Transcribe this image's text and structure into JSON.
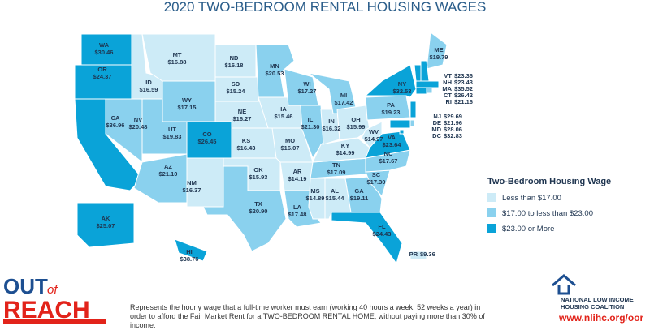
{
  "title": "2020 TWO-BEDROOM RENTAL HOUSING WAGES",
  "map": {
    "states": [
      {
        "abbr": "WA",
        "label": "$30.46",
        "value": 30.46,
        "color": "#0aa3d8"
      },
      {
        "abbr": "OR",
        "label": "$24.37",
        "value": 24.37,
        "color": "#0aa3d8"
      },
      {
        "abbr": "CA",
        "label": "$36.96",
        "value": 36.96,
        "color": "#0aa3d8"
      },
      {
        "abbr": "NV",
        "label": "$20.48",
        "value": 20.48,
        "color": "#8ad1ee"
      },
      {
        "abbr": "ID",
        "label": "$16.59",
        "value": 16.59,
        "color": "#cdebf7"
      },
      {
        "abbr": "MT",
        "label": "$16.88",
        "value": 16.88,
        "color": "#cdebf7"
      },
      {
        "abbr": "WY",
        "label": "$17.15",
        "value": 17.15,
        "color": "#8ad1ee"
      },
      {
        "abbr": "UT",
        "label": "$19.83",
        "value": 19.83,
        "color": "#8ad1ee"
      },
      {
        "abbr": "CO",
        "label": "$26.45",
        "value": 26.45,
        "color": "#0aa3d8"
      },
      {
        "abbr": "AZ",
        "label": "$21.10",
        "value": 21.1,
        "color": "#8ad1ee"
      },
      {
        "abbr": "NM",
        "label": "$16.37",
        "value": 16.37,
        "color": "#cdebf7"
      },
      {
        "abbr": "ND",
        "label": "$16.18",
        "value": 16.18,
        "color": "#cdebf7"
      },
      {
        "abbr": "SD",
        "label": "$15.24",
        "value": 15.24,
        "color": "#cdebf7"
      },
      {
        "abbr": "NE",
        "label": "$16.27",
        "value": 16.27,
        "color": "#cdebf7"
      },
      {
        "abbr": "KS",
        "label": "$16.43",
        "value": 16.43,
        "color": "#cdebf7"
      },
      {
        "abbr": "OK",
        "label": "$15.93",
        "value": 15.93,
        "color": "#cdebf7"
      },
      {
        "abbr": "TX",
        "label": "$20.90",
        "value": 20.9,
        "color": "#8ad1ee"
      },
      {
        "abbr": "MN",
        "label": "$20.53",
        "value": 20.53,
        "color": "#8ad1ee"
      },
      {
        "abbr": "IA",
        "label": "$15.46",
        "value": 15.46,
        "color": "#cdebf7"
      },
      {
        "abbr": "MO",
        "label": "$16.07",
        "value": 16.07,
        "color": "#cdebf7"
      },
      {
        "abbr": "AR",
        "label": "$14.19",
        "value": 14.19,
        "color": "#cdebf7"
      },
      {
        "abbr": "LA",
        "label": "$17.48",
        "value": 17.48,
        "color": "#8ad1ee"
      },
      {
        "abbr": "WI",
        "label": "$17.27",
        "value": 17.27,
        "color": "#8ad1ee"
      },
      {
        "abbr": "IL",
        "label": "$21.30",
        "value": 21.3,
        "color": "#8ad1ee"
      },
      {
        "abbr": "MS",
        "label": "$14.89",
        "value": 14.89,
        "color": "#cdebf7"
      },
      {
        "abbr": "AL",
        "label": "$15.44",
        "value": 15.44,
        "color": "#cdebf7"
      },
      {
        "abbr": "TN",
        "label": "$17.09",
        "value": 17.09,
        "color": "#8ad1ee"
      },
      {
        "abbr": "KY",
        "label": "$14.99",
        "value": 14.99,
        "color": "#cdebf7"
      },
      {
        "abbr": "IN",
        "label": "$16.32",
        "value": 16.32,
        "color": "#cdebf7"
      },
      {
        "abbr": "MI",
        "label": "$17.42",
        "value": 17.42,
        "color": "#8ad1ee"
      },
      {
        "abbr": "OH",
        "label": "$15.99",
        "value": 15.99,
        "color": "#cdebf7"
      },
      {
        "abbr": "GA",
        "label": "$19.11",
        "value": 19.11,
        "color": "#8ad1ee"
      },
      {
        "abbr": "FL",
        "label": "$24.43",
        "value": 24.43,
        "color": "#0aa3d8"
      },
      {
        "abbr": "SC",
        "label": "$17.30",
        "value": 17.3,
        "color": "#8ad1ee"
      },
      {
        "abbr": "NC",
        "label": "$17.67",
        "value": 17.67,
        "color": "#8ad1ee"
      },
      {
        "abbr": "VA",
        "label": "$23.64",
        "value": 23.64,
        "color": "#0aa3d8"
      },
      {
        "abbr": "WV",
        "label": "$14.97",
        "value": 14.97,
        "color": "#cdebf7"
      },
      {
        "abbr": "PA",
        "label": "$19.23",
        "value": 19.23,
        "color": "#8ad1ee"
      },
      {
        "abbr": "NY",
        "label": "$32.53",
        "value": 32.53,
        "color": "#0aa3d8"
      },
      {
        "abbr": "ME",
        "label": "$19.79",
        "value": 19.79,
        "color": "#8ad1ee"
      },
      {
        "abbr": "VT",
        "label": "$23.36",
        "value": 23.36,
        "color": "#0aa3d8"
      },
      {
        "abbr": "NH",
        "label": "$23.43",
        "value": 23.43,
        "color": "#0aa3d8"
      },
      {
        "abbr": "MA",
        "label": "$35.52",
        "value": 35.52,
        "color": "#0aa3d8"
      },
      {
        "abbr": "CT",
        "label": "$26.42",
        "value": 26.42,
        "color": "#0aa3d8"
      },
      {
        "abbr": "RI",
        "label": "$21.16",
        "value": 21.16,
        "color": "#8ad1ee"
      },
      {
        "abbr": "NJ",
        "label": "$29.69",
        "value": 29.69,
        "color": "#0aa3d8"
      },
      {
        "abbr": "DE",
        "label": "$21.96",
        "value": 21.96,
        "color": "#8ad1ee"
      },
      {
        "abbr": "MD",
        "label": "$28.06",
        "value": 28.06,
        "color": "#0aa3d8"
      },
      {
        "abbr": "DC",
        "label": "$32.83",
        "value": 32.83,
        "color": "#0aa3d8"
      },
      {
        "abbr": "AK",
        "label": "$25.07",
        "value": 25.07,
        "color": "#0aa3d8"
      },
      {
        "abbr": "HI",
        "label": "$38.76",
        "value": 38.76,
        "color": "#0aa3d8"
      },
      {
        "abbr": "PR",
        "label": "$9.36",
        "value": 9.36,
        "color": "#cdebf7"
      }
    ]
  },
  "legend": {
    "title": "Two-Bedroom Housing Wage",
    "items": [
      {
        "label": "Less than $17.00",
        "color": "#cdebf7"
      },
      {
        "label": "$17.00 to less than $23.00",
        "color": "#8ad1ee"
      },
      {
        "label": "$23.00 or More",
        "color": "#0aa3d8"
      }
    ]
  },
  "footer": {
    "logo_top": "OUT",
    "logo_of": "of",
    "logo_bottom": "REACH",
    "description": "Represents the hourly wage that a full-time worker must earn (working 40 hours a week, 52 weeks a year) in order to afford the Fair Market Rent for a TWO-BEDROOM RENTAL HOME, without paying more than 30% of income.",
    "org_line1": "NATIONAL LOW INCOME",
    "org_line2": "HOUSING COALITION",
    "url": "www.nlihc.org/oor"
  }
}
